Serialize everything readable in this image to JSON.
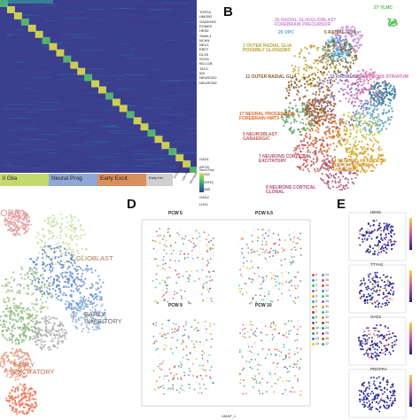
{
  "panels": {
    "B": {
      "label": "B"
    },
    "D": {
      "label": "D"
    },
    "E": {
      "label": "E"
    }
  },
  "panel_a": {
    "genes": [
      "TOP2A",
      "HMGB2",
      "GADD45G",
      "EOMES",
      "HES6",
      "SNAIL1",
      "NCAN",
      "NEU1",
      "EBF2",
      "DLX5",
      "SOX6",
      "BCL11B",
      "TAC1",
      "ID2",
      "NEUROD2",
      "NEUROD6",
      "GAD1",
      "APOD",
      "OLIG2",
      "PCDH15",
      "S100B",
      "GAD2",
      "LHX1"
    ],
    "groups": [
      {
        "label": "ll Glia",
        "color": "#c5d86d"
      },
      {
        "label": "Neural Prog",
        "color": "#8fa8d6"
      },
      {
        "label": "Early Excit.",
        "color": "#d98f5b"
      },
      {
        "label": "Early Inh.",
        "color": "#cfcfcf"
      }
    ],
    "small_groups": [
      "Endothelial",
      "Late Ast.",
      "Microglia"
    ],
    "legend_title": "Norm.Expr."
  },
  "panel_b": {
    "labels": [
      {
        "text": "27 VLMC",
        "color": "#55c255"
      },
      {
        "text": "25 RADIAL GLIA/GLIOBLAST FOREBRAIN PRECURSOR",
        "color": "#c98bd6"
      },
      {
        "text": "26 OPC",
        "color": "#5ba7d6"
      },
      {
        "text": "5 RADIAL GLIA",
        "color": "#7c6a3a"
      },
      {
        "text": "1 OUTER RADIAL GLIA POSSIBLY GLIOGENIC",
        "color": "#b8a23a"
      },
      {
        "text": "11 OUTER RADIAL GLIA",
        "color": "#8a5a2a"
      },
      {
        "text": "13 RADIAL GLIA",
        "color": "#7f66b3"
      },
      {
        "text": "15 NEURONS STRIATUM CCA",
        "color": "#d06fa8"
      },
      {
        "text": "17 NEURAL PROGENITOR FOREBRAIN HMTX",
        "color": "#d96a2a"
      },
      {
        "text": "0 NEUROBLAST GABAERGIC",
        "color": "#c45a5a"
      },
      {
        "text": "7 NEURONS CORTICAL EXCITATORY",
        "color": "#b05070"
      },
      {
        "text": "14 NEUROBLAST MOTOR NEURON POSSIBLY GABAERGIC",
        "color": "#d6a02a"
      },
      {
        "text": "9 NEURONS CORTICAL CLONAL",
        "color": "#b04a7a"
      }
    ]
  },
  "panel_c": {
    "labels": [
      {
        "text": "OPC",
        "color": "#e0a0a0"
      },
      {
        "text": "GLIOBLAST",
        "color": "#b07a5a"
      },
      {
        "text": "EARLY INHIBITORY",
        "color": "#6a6a6a"
      },
      {
        "text": "EARLY EXCITATORY",
        "color": "#c86a4a"
      }
    ]
  },
  "panel_d": {
    "titles": [
      "PCW 5",
      "PCW 6.5",
      "PCW 9",
      "PCW 10"
    ],
    "xlabel": "UMAP_1",
    "legend": [
      "0",
      "1",
      "2",
      "3",
      "4",
      "5",
      "6",
      "7",
      "8",
      "9",
      "10",
      "11",
      "12",
      "13",
      "14",
      "15",
      "16",
      "17",
      "18",
      "19",
      "20",
      "21",
      "22",
      "23",
      "24",
      "25",
      "26",
      "27"
    ]
  },
  "panel_e": {
    "genes": [
      "HES5",
      "TTYH1",
      "GAD1",
      "PDGFRA"
    ],
    "axis": "UMAP1",
    "scale_label": "Expr."
  },
  "colors": {
    "heatmap_bg": "#3b3f8f",
    "heatmap_diag": "#e8e84a",
    "umap_blue": "#1f1f8f"
  }
}
